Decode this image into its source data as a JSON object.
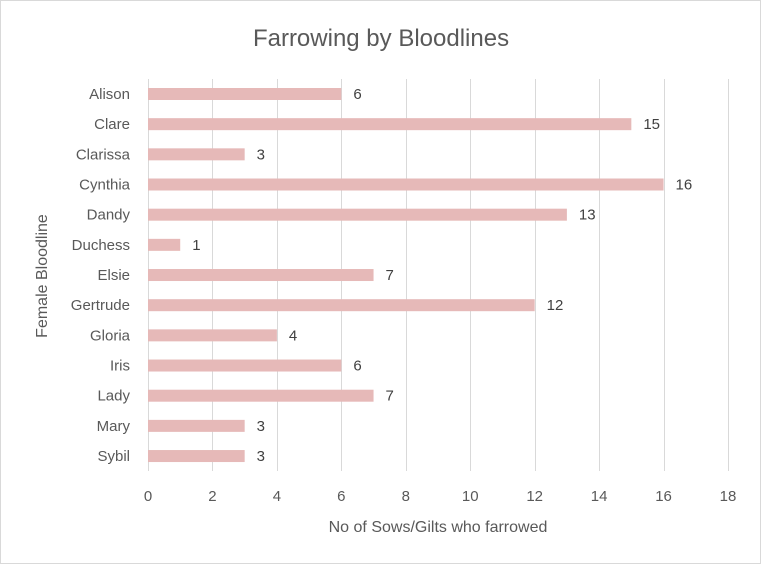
{
  "chart_data": {
    "type": "bar",
    "orientation": "horizontal",
    "title": "Farrowing by Bloodlines",
    "xlabel": "No of Sows/Gilts who farrowed",
    "ylabel": "Female Bloodline",
    "categories": [
      "Alison",
      "Clare",
      "Clarissa",
      "Cynthia",
      "Dandy",
      "Duchess",
      "Elsie",
      "Gertrude",
      "Gloria",
      "Iris",
      "Lady",
      "Mary",
      "Sybil"
    ],
    "values": [
      6,
      15,
      3,
      16,
      13,
      1,
      7,
      12,
      4,
      6,
      7,
      3,
      3
    ],
    "xlim": [
      0,
      18
    ],
    "xticks": [
      0,
      2,
      4,
      6,
      8,
      10,
      12,
      14,
      16,
      18
    ],
    "grid": "vertical",
    "data_labels": true,
    "legend": "none",
    "colors": {
      "bar": "#e6b9b8",
      "grid": "#d9d9d9",
      "text": "#595959",
      "label": "#404040"
    }
  }
}
